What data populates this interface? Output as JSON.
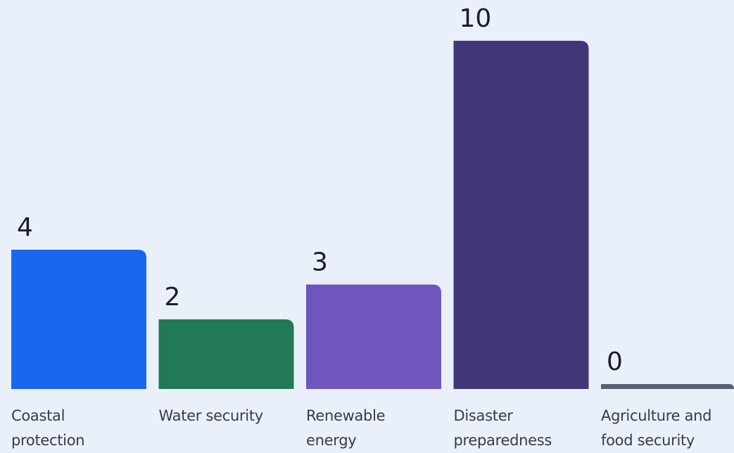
{
  "chart_data": {
    "type": "bar",
    "categories": [
      "Coastal protection",
      "Water security",
      "Renewable energy",
      "Disaster preparedness",
      "Agriculture and food security"
    ],
    "values": [
      4,
      2,
      3,
      10,
      0
    ],
    "colors": [
      "#1a66ee",
      "#217a55",
      "#7055bd",
      "#413778",
      "#5a5f73"
    ]
  }
}
